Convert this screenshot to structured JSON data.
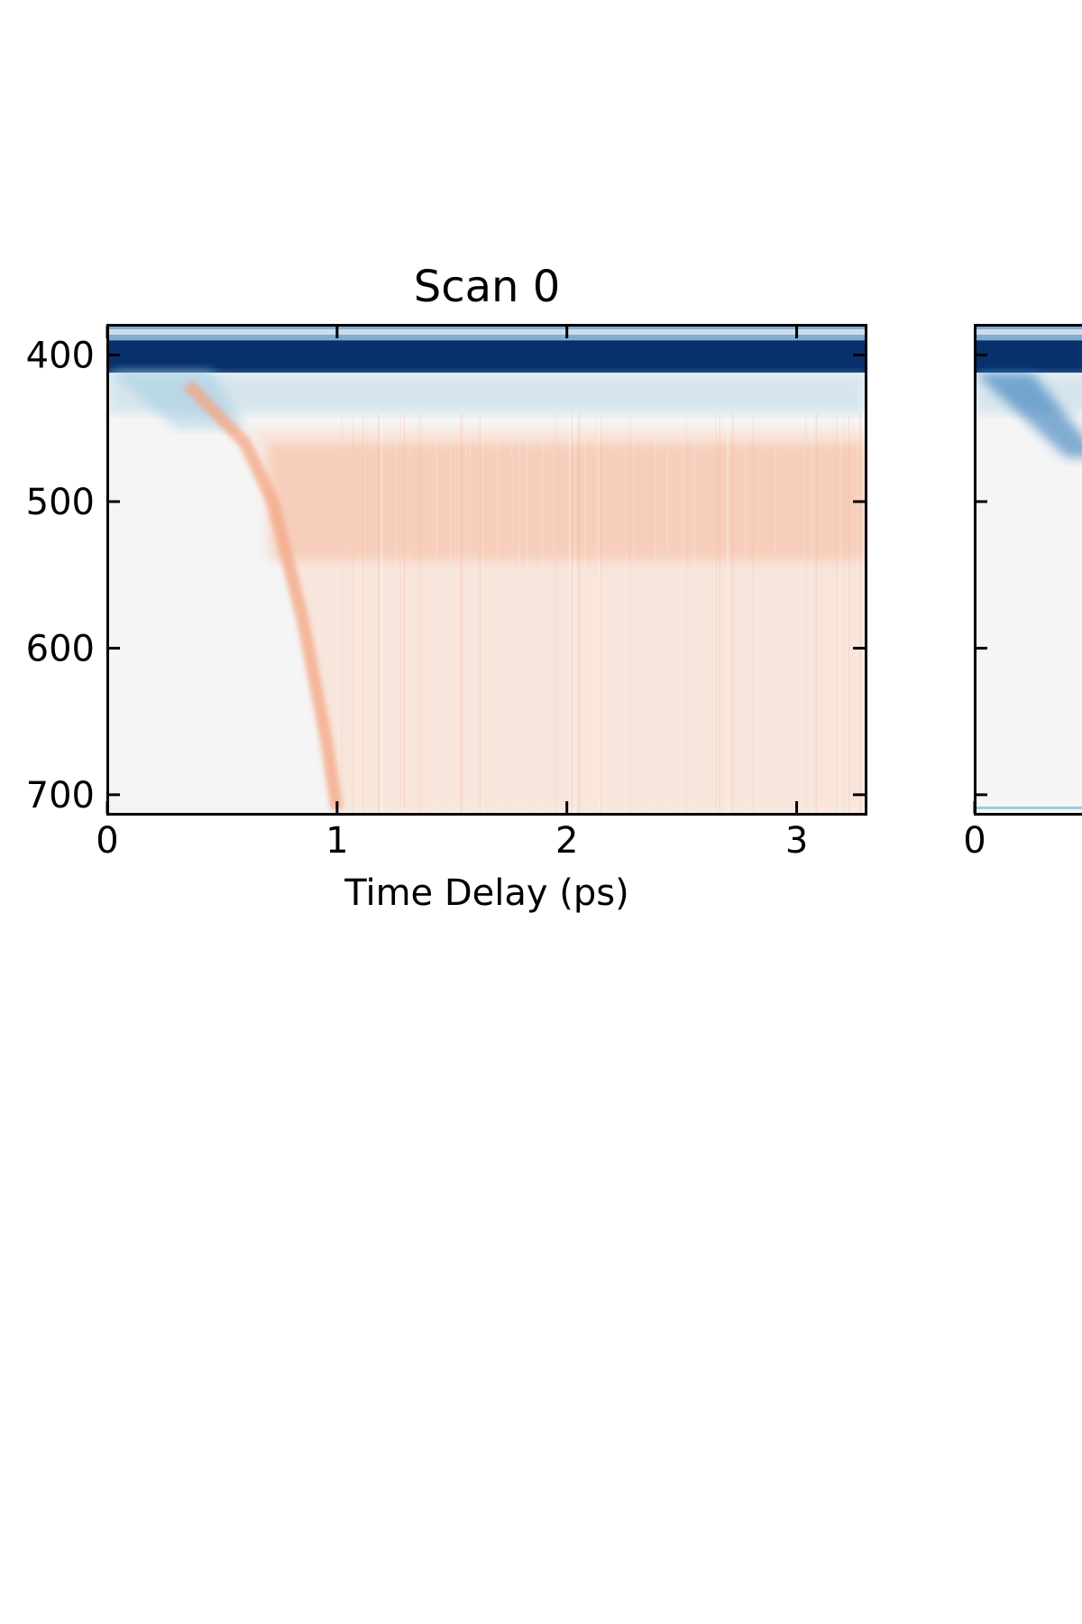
{
  "chart_data": {
    "type": "heatmap",
    "colormap": "RdBu_r",
    "colors": {
      "dark_blue": "#08306b",
      "mid_blue": "#2171b5",
      "light_blue": "#9ecae1",
      "background": "#f5f5f5",
      "light_orange": "#fbd9c6",
      "orange": "#f4a582",
      "frame": "#000000"
    },
    "panels": [
      {
        "title": "Scan 0",
        "xlabel": "Time Delay (ps)",
        "ylabel": "",
        "xlim": [
          0,
          3.3
        ],
        "ylim": [
          380,
          713
        ],
        "y_inverted": true,
        "xticks": [
          0,
          1,
          2,
          3
        ],
        "yticks": [
          400,
          500,
          600,
          700
        ],
        "features": [
          {
            "kind": "bleach-band",
            "y_range": [
              390,
              412
            ],
            "sign": "negative",
            "x_range": [
              0,
              3.3
            ]
          },
          {
            "kind": "chirp-edge",
            "points": [
              {
                "x": 0.35,
                "y": 420
              },
              {
                "x": 0.6,
                "y": 460
              },
              {
                "x": 0.72,
                "y": 500
              },
              {
                "x": 0.85,
                "y": 580
              },
              {
                "x": 0.95,
                "y": 660
              },
              {
                "x": 1.0,
                "y": 710
              }
            ],
            "sign": "positive"
          },
          {
            "kind": "absorption-band",
            "y_range": [
              460,
              540
            ],
            "center": 505,
            "sign": "positive",
            "x_range": [
              0.7,
              3.3
            ]
          }
        ]
      },
      {
        "title": "",
        "xlabel": "",
        "ylabel": "",
        "xlim": [
          0,
          3.3
        ],
        "ylim": [
          380,
          713
        ],
        "y_inverted": true,
        "xticks": [
          0
        ],
        "yticks": [
          400,
          500,
          600,
          700
        ],
        "show_ytick_labels": false,
        "clipped": true
      }
    ]
  }
}
